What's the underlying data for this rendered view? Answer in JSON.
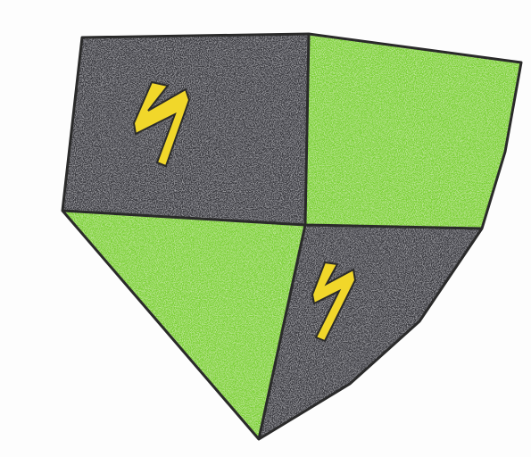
{
  "drawing": {
    "subject": "shield",
    "style": "crayon",
    "colors": {
      "dark_quadrant": "#3f3f44",
      "green_quadrant": "#7fd13b",
      "bolt": "#f1d72a",
      "outline": "#2a2a2a",
      "paper": "#fdfdfd"
    },
    "icons": {
      "upper_left": "lightning-bolt-icon",
      "lower_right": "lightning-bolt-icon"
    }
  }
}
